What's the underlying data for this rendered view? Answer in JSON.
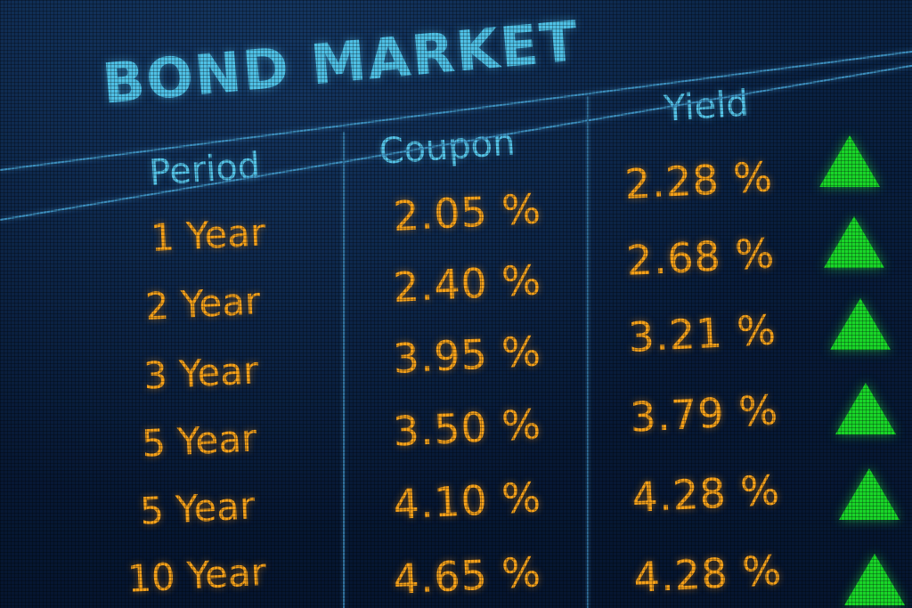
{
  "board": {
    "title": "BOND MARKET",
    "columns": {
      "period": "Period",
      "coupon": "Coupon",
      "yield": "Yield"
    },
    "rows": [
      {
        "period": "1 Year",
        "coupon": "2.05 %",
        "yield": "2.28 %",
        "trend": "up"
      },
      {
        "period": "2 Year",
        "coupon": "2.40 %",
        "yield": "2.68 %",
        "trend": "up"
      },
      {
        "period": "3 Year",
        "coupon": "3.95 %",
        "yield": "3.21 %",
        "trend": "up"
      },
      {
        "period": "5 Year",
        "coupon": "3.50 %",
        "yield": "3.79 %",
        "trend": "up"
      },
      {
        "period": "5 Year",
        "coupon": "4.10 %",
        "yield": "4.28 %",
        "trend": "up"
      },
      {
        "period": "10 Year",
        "coupon": "4.65 %",
        "yield": "4.28 %",
        "trend": "up"
      }
    ],
    "colors": {
      "background": "#081c3a",
      "title": "#4fc0e6",
      "header": "#55c3e8",
      "value": "#f5a21c",
      "trend_up": "#19d629"
    },
    "icons": {
      "trend_up": "triangle-up-icon"
    }
  }
}
